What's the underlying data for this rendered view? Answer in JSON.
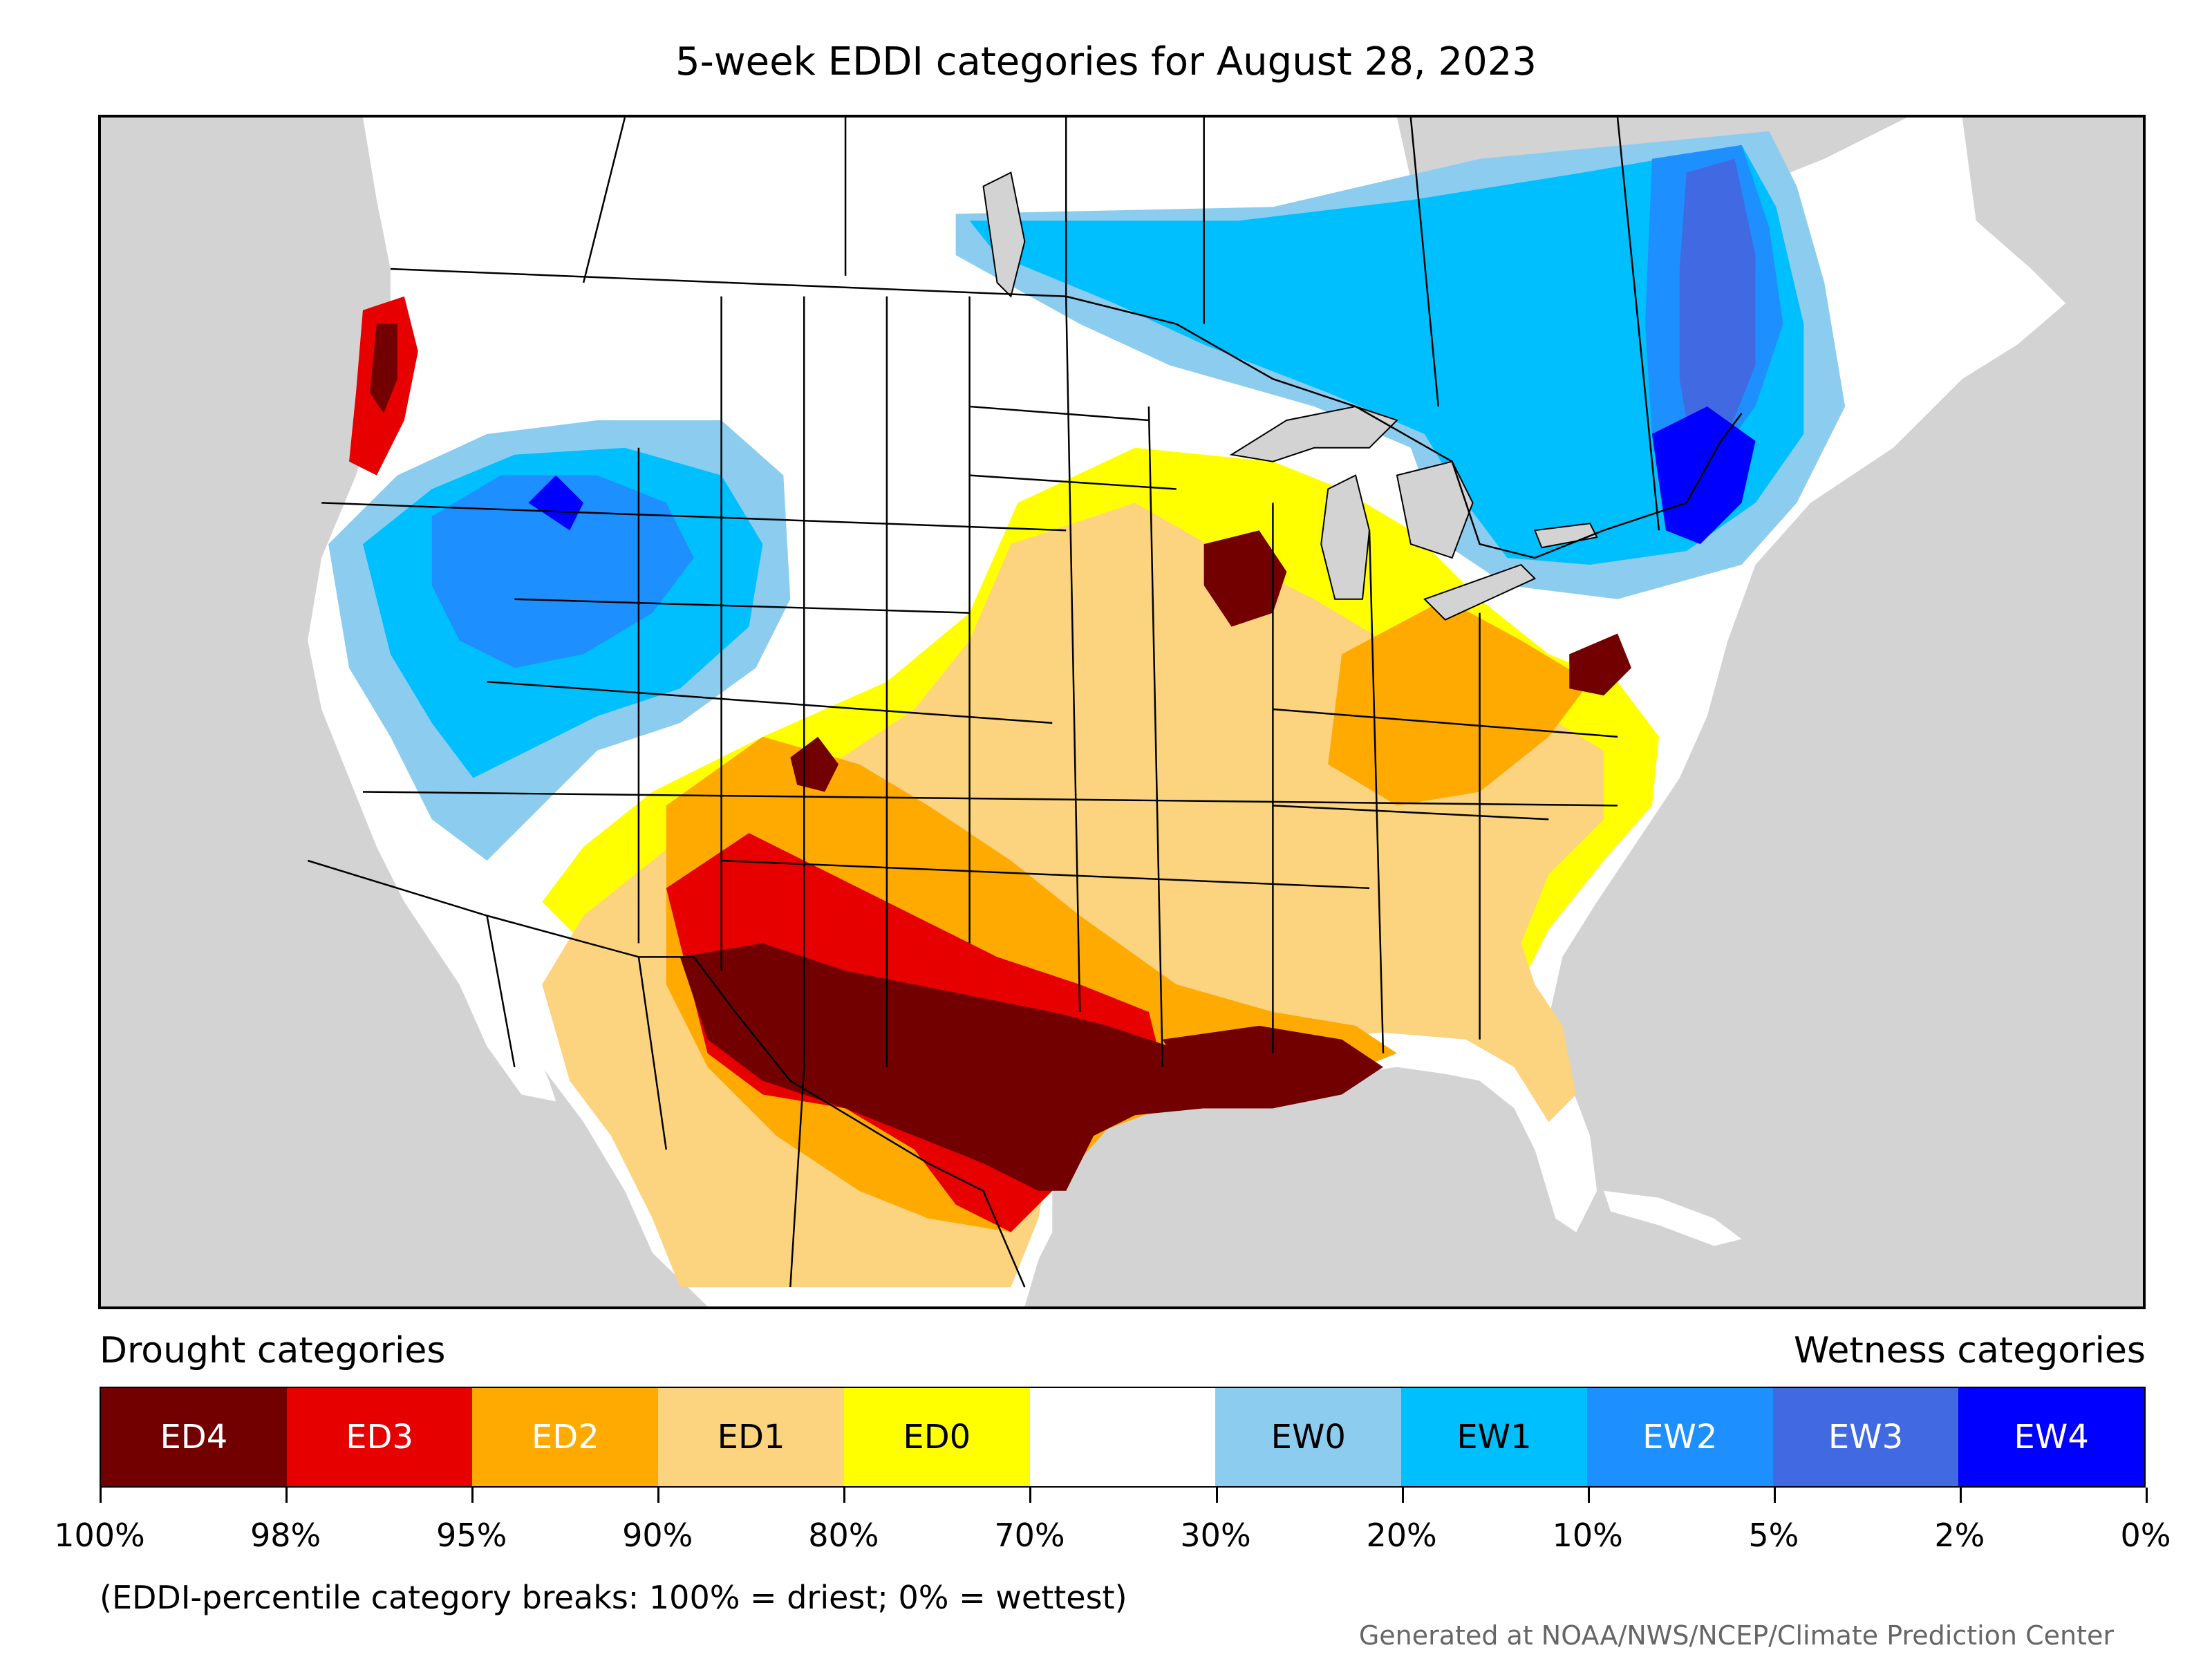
{
  "title": "5-week EDDI categories for August 28, 2023",
  "legend": {
    "drought_label": "Drought categories",
    "wetness_label": "Wetness categories",
    "categories": [
      {
        "code": "ED4",
        "color": "#730000",
        "text_color": "#ffffff"
      },
      {
        "code": "ED3",
        "color": "#e60000",
        "text_color": "#ffffff"
      },
      {
        "code": "ED2",
        "color": "#ffaa00",
        "text_color": "#ffffff"
      },
      {
        "code": "ED1",
        "color": "#fcd37f",
        "text_color": "#000000"
      },
      {
        "code": "ED0",
        "color": "#ffff00",
        "text_color": "#000000"
      },
      {
        "code": "",
        "color": "#ffffff",
        "text_color": "#000000"
      },
      {
        "code": "EW0",
        "color": "#8ccdef",
        "text_color": "#000000"
      },
      {
        "code": "EW1",
        "color": "#00bfff",
        "text_color": "#000000"
      },
      {
        "code": "EW2",
        "color": "#1e8fff",
        "text_color": "#ffffff"
      },
      {
        "code": "EW3",
        "color": "#4169e1",
        "text_color": "#ffffff"
      },
      {
        "code": "EW4",
        "color": "#0000ff",
        "text_color": "#ffffff"
      }
    ],
    "tick_labels": [
      "100%",
      "98%",
      "95%",
      "90%",
      "80%",
      "70%",
      "30%",
      "20%",
      "10%",
      "5%",
      "2%",
      "0%"
    ]
  },
  "note": "(EDDI-percentile category breaks: 100% = driest; 0% = wettest)",
  "credit": "Generated at NOAA/NWS/NCEP/Climate Prediction Center",
  "map": {
    "ocean_color": "#d3d3d3",
    "land_color": "#ffffff",
    "boundary_color": "#000000"
  }
}
